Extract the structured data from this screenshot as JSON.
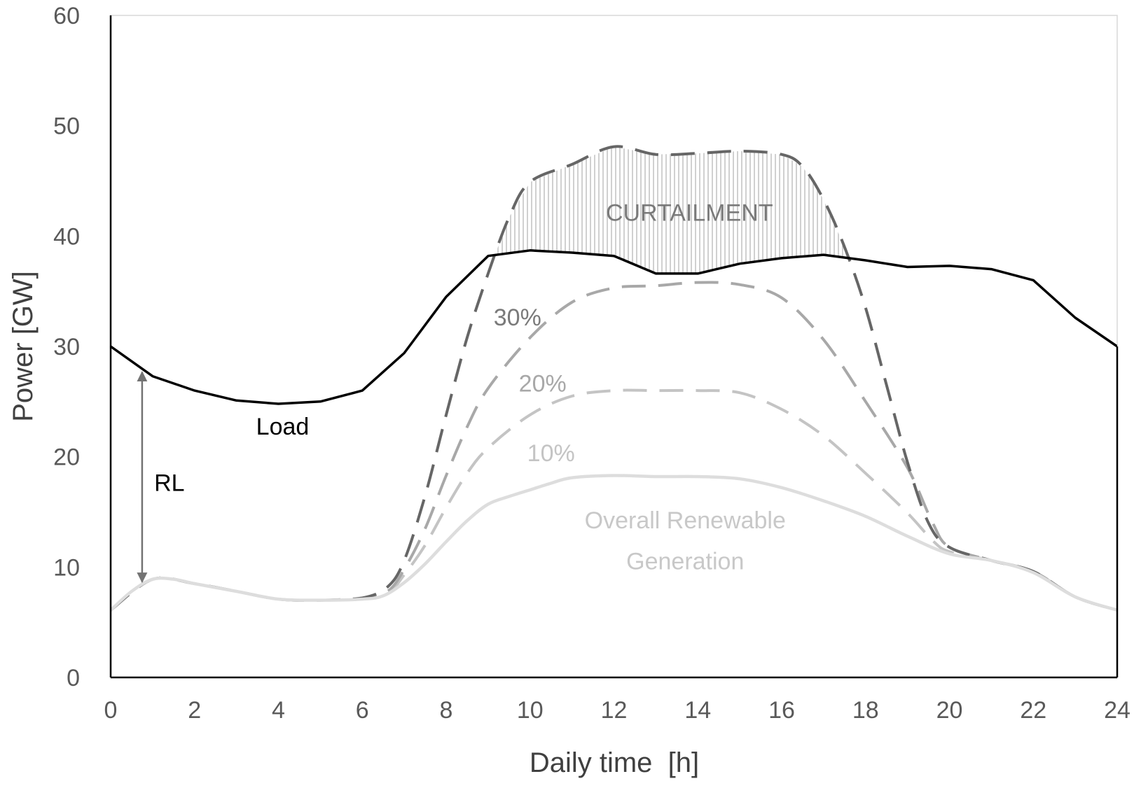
{
  "chart_data": {
    "type": "line",
    "xlabel": "Daily time  [h]",
    "ylabel": "Power [GW]",
    "xlim": [
      0,
      24
    ],
    "ylim": [
      0,
      60
    ],
    "x_ticks": [
      0,
      2,
      4,
      6,
      8,
      10,
      12,
      14,
      16,
      18,
      20,
      22,
      24
    ],
    "y_ticks": [
      0,
      10,
      20,
      30,
      40,
      50,
      60
    ],
    "grid": false,
    "colors": {
      "load": "#000000",
      "renewable": "#dddddd",
      "ren_10": "#c4c4c4",
      "ren_20": "#a8a8a8",
      "ren_30": "#666666",
      "curtailment": "#b8b8b8",
      "arrow": "#737373",
      "axis": "#000000"
    },
    "series": [
      {
        "key": "load",
        "style": "solid",
        "points": [
          [
            0,
            30.0
          ],
          [
            1,
            27.3
          ],
          [
            2,
            26.0
          ],
          [
            3,
            25.1
          ],
          [
            4,
            24.8
          ],
          [
            5,
            25.0
          ],
          [
            6,
            26.0
          ],
          [
            7,
            29.4
          ],
          [
            8,
            34.5
          ],
          [
            9,
            38.2
          ],
          [
            10,
            38.7
          ],
          [
            11,
            38.5
          ],
          [
            12,
            38.2
          ],
          [
            13,
            36.6
          ],
          [
            14,
            36.6
          ],
          [
            15,
            37.5
          ],
          [
            16,
            38.0
          ],
          [
            17,
            38.3
          ],
          [
            18,
            37.8
          ],
          [
            19,
            37.2
          ],
          [
            20,
            37.3
          ],
          [
            21,
            37.0
          ],
          [
            22,
            36.0
          ],
          [
            23,
            32.6
          ],
          [
            24,
            30.0
          ]
        ]
      },
      {
        "key": "renewable",
        "style": "solid",
        "points": [
          [
            0,
            6.1
          ],
          [
            0.5,
            7.8
          ],
          [
            1,
            8.9
          ],
          [
            1.5,
            8.9
          ],
          [
            2,
            8.5
          ],
          [
            3,
            7.8
          ],
          [
            4,
            7.1
          ],
          [
            5,
            7.0
          ],
          [
            6,
            7.1
          ],
          [
            6.5,
            7.4
          ],
          [
            7,
            8.6
          ],
          [
            7.5,
            10.3
          ],
          [
            8,
            12.3
          ],
          [
            8.5,
            14.2
          ],
          [
            9,
            15.7
          ],
          [
            9.5,
            16.4
          ],
          [
            10,
            17.0
          ],
          [
            10.5,
            17.6
          ],
          [
            11,
            18.1
          ],
          [
            12,
            18.3
          ],
          [
            13,
            18.2
          ],
          [
            14,
            18.2
          ],
          [
            15,
            18.0
          ],
          [
            16,
            17.2
          ],
          [
            17,
            16.0
          ],
          [
            18,
            14.6
          ],
          [
            19,
            12.8
          ],
          [
            20,
            11.2
          ],
          [
            21,
            10.6
          ],
          [
            22,
            9.5
          ],
          [
            23,
            7.3
          ],
          [
            24,
            6.1
          ]
        ]
      },
      {
        "key": "ren_10",
        "style": "dashed",
        "points": [
          [
            0,
            6.1
          ],
          [
            1,
            8.9
          ],
          [
            2,
            8.5
          ],
          [
            3,
            7.8
          ],
          [
            4,
            7.1
          ],
          [
            5,
            7.0
          ],
          [
            6,
            7.2
          ],
          [
            6.6,
            7.6
          ],
          [
            7,
            9.3
          ],
          [
            7.5,
            12.0
          ],
          [
            8,
            15.4
          ],
          [
            8.5,
            18.5
          ],
          [
            9,
            20.8
          ],
          [
            10,
            23.8
          ],
          [
            11,
            25.5
          ],
          [
            12,
            26.0
          ],
          [
            13,
            26.0
          ],
          [
            14,
            26.0
          ],
          [
            15,
            25.8
          ],
          [
            16,
            24.3
          ],
          [
            17,
            21.9
          ],
          [
            18,
            18.5
          ],
          [
            19,
            14.9
          ],
          [
            19.6,
            12.4
          ],
          [
            20,
            11.4
          ],
          [
            21,
            10.6
          ],
          [
            22,
            9.6
          ],
          [
            23,
            7.3
          ],
          [
            24,
            6.1
          ]
        ]
      },
      {
        "key": "ren_20",
        "style": "dashed",
        "points": [
          [
            0,
            6.1
          ],
          [
            1,
            8.9
          ],
          [
            2,
            8.5
          ],
          [
            3,
            7.8
          ],
          [
            4,
            7.1
          ],
          [
            5,
            7.0
          ],
          [
            6,
            7.2
          ],
          [
            6.6,
            7.8
          ],
          [
            7,
            9.8
          ],
          [
            7.5,
            13.5
          ],
          [
            8,
            18.3
          ],
          [
            8.5,
            22.7
          ],
          [
            9,
            26.2
          ],
          [
            10,
            30.8
          ],
          [
            11,
            34.0
          ],
          [
            12,
            35.3
          ],
          [
            13,
            35.5
          ],
          [
            14,
            35.8
          ],
          [
            15,
            35.6
          ],
          [
            16,
            34.4
          ],
          [
            17,
            30.6
          ],
          [
            18,
            25.0
          ],
          [
            19,
            19.0
          ],
          [
            19.6,
            14.0
          ],
          [
            20,
            11.8
          ],
          [
            21,
            10.6
          ],
          [
            22,
            9.6
          ],
          [
            23,
            7.3
          ],
          [
            24,
            6.1
          ]
        ]
      },
      {
        "key": "ren_30",
        "style": "dashed",
        "points": [
          [
            0,
            6.1
          ],
          [
            1,
            8.9
          ],
          [
            2,
            8.5
          ],
          [
            3,
            7.8
          ],
          [
            4,
            7.1
          ],
          [
            5,
            7.0
          ],
          [
            6,
            7.2
          ],
          [
            6.6,
            8.2
          ],
          [
            7,
            10.6
          ],
          [
            7.5,
            16.5
          ],
          [
            8,
            23.8
          ],
          [
            8.5,
            30.8
          ],
          [
            9,
            36.6
          ],
          [
            9.5,
            41.7
          ],
          [
            10,
            44.9
          ],
          [
            11,
            46.5
          ],
          [
            12,
            48.1
          ],
          [
            13,
            47.4
          ],
          [
            14,
            47.5
          ],
          [
            15,
            47.7
          ],
          [
            16,
            47.4
          ],
          [
            16.5,
            46.3
          ],
          [
            17,
            43.3
          ],
          [
            17.5,
            39.0
          ],
          [
            18,
            33.5
          ],
          [
            18.5,
            26.5
          ],
          [
            19,
            19.5
          ],
          [
            19.5,
            14.0
          ],
          [
            20,
            11.8
          ],
          [
            21,
            10.6
          ],
          [
            22,
            9.6
          ],
          [
            23,
            7.3
          ],
          [
            24,
            6.1
          ]
        ]
      }
    ],
    "annotations": {
      "load_label": "Load",
      "rl_label": "RL",
      "curtailment_label": "CURTAILMENT",
      "pct_30": "30%",
      "pct_20": "20%",
      "pct_10": "10%",
      "renewable_line1": "Overall Renewable",
      "renewable_line2": "Generation"
    }
  }
}
